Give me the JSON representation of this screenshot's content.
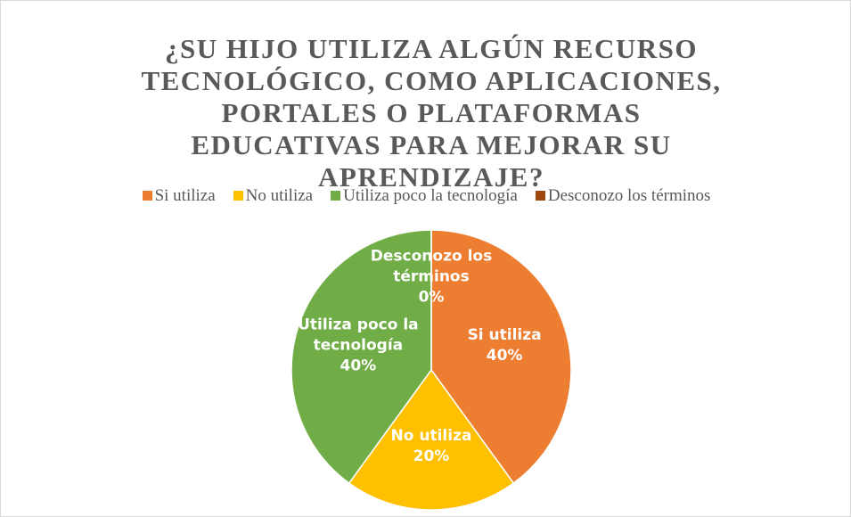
{
  "chart_data": {
    "type": "pie",
    "title": "¿SU HIJO UTILIZA ALGÚN RECURSO TECNOLÓGICO, COMO APLICACIONES, PORTALES O PLATAFORMAS EDUCATIVAS PARA MEJORAR SU APRENDIZAJE?",
    "categories": [
      "Si utiliza",
      "No utiliza",
      "Utiliza poco la tecnología",
      "Desconozo los términos"
    ],
    "values": [
      40,
      20,
      40,
      0
    ],
    "value_labels": [
      "40%",
      "20%",
      "40%",
      "0%"
    ],
    "colors": [
      "#ed7d31",
      "#ffc000",
      "#70ad47",
      "#9e480e"
    ],
    "legend": "top"
  }
}
